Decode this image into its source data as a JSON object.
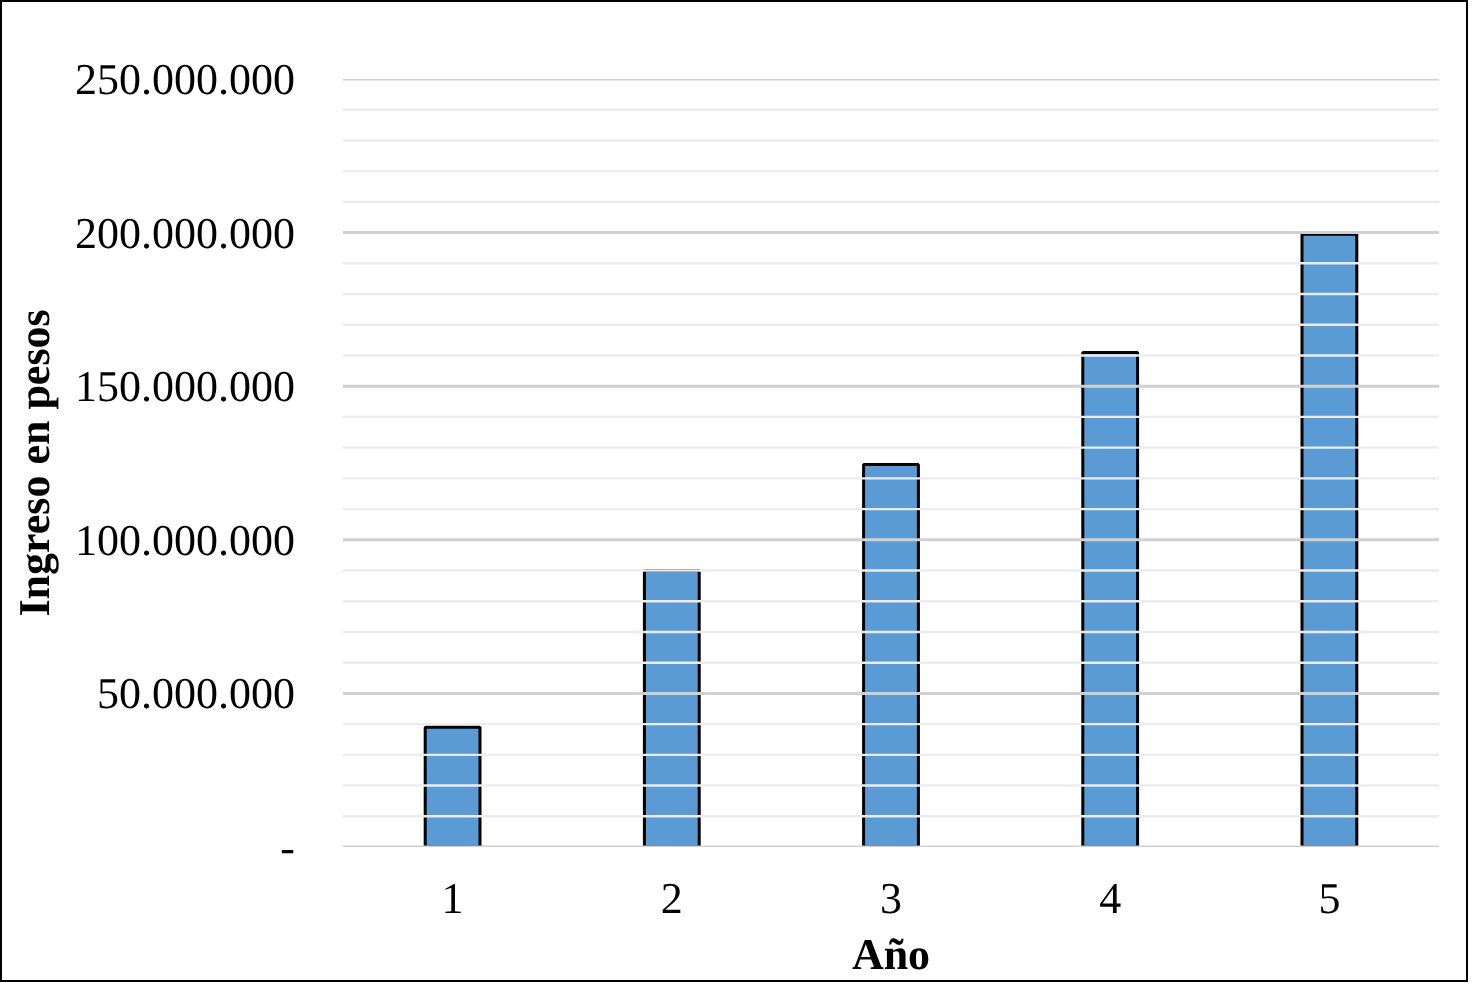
{
  "chart_data": {
    "type": "bar",
    "xlabel": "Año",
    "ylabel": "Ingreso en pesos",
    "categories": [
      "1",
      "2",
      "3",
      "4",
      "5"
    ],
    "values": [
      39000000,
      90000000,
      124500000,
      161000000,
      199500000
    ],
    "color": "#5b9bd5",
    "ylim": [
      0,
      250000000
    ],
    "yticks": [
      {
        "value": 0,
        "label": "-"
      },
      {
        "value": 10000000,
        "label": null
      },
      {
        "value": 20000000,
        "label": null
      },
      {
        "value": 30000000,
        "label": null
      },
      {
        "value": 40000000,
        "label": null
      },
      {
        "value": 50000000,
        "label": "50.000.000"
      },
      {
        "value": 60000000,
        "label": null
      },
      {
        "value": 70000000,
        "label": null
      },
      {
        "value": 80000000,
        "label": null
      },
      {
        "value": 90000000,
        "label": null
      },
      {
        "value": 100000000,
        "label": "100.000.000"
      },
      {
        "value": 110000000,
        "label": null
      },
      {
        "value": 120000000,
        "label": null
      },
      {
        "value": 130000000,
        "label": null
      },
      {
        "value": 140000000,
        "label": null
      },
      {
        "value": 150000000,
        "label": "150.000.000"
      },
      {
        "value": 160000000,
        "label": null
      },
      {
        "value": 170000000,
        "label": null
      },
      {
        "value": 180000000,
        "label": null
      },
      {
        "value": 190000000,
        "label": null
      },
      {
        "value": 200000000,
        "label": "200.000.000"
      },
      {
        "value": 210000000,
        "label": null
      },
      {
        "value": 220000000,
        "label": null
      },
      {
        "value": 230000000,
        "label": null
      },
      {
        "value": 240000000,
        "label": null
      },
      {
        "value": 250000000,
        "label": "250.000.000"
      }
    ],
    "grid": "y"
  }
}
